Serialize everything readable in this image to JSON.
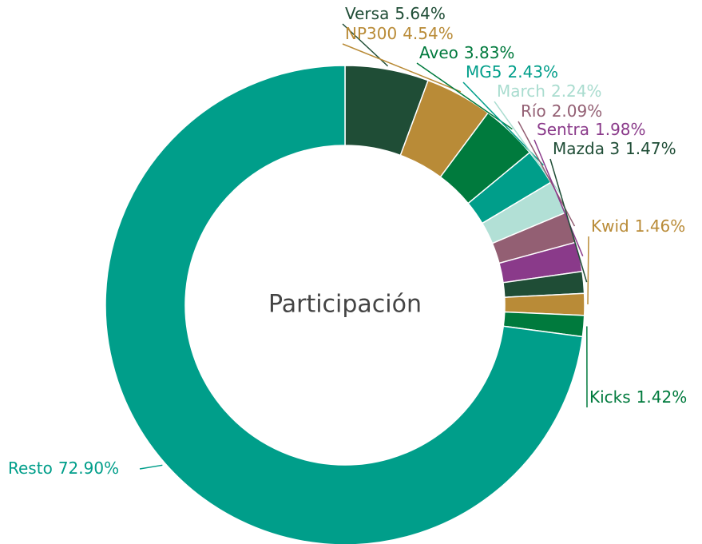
{
  "chart_data": {
    "type": "pie",
    "donut": true,
    "title": "Participación",
    "categories": [
      "Versa",
      "NP300",
      "Aveo",
      "MG5",
      "March",
      "Río",
      "Sentra",
      "Mazda 3",
      "Kwid",
      "Kicks",
      "Resto"
    ],
    "values": [
      5.64,
      4.54,
      3.83,
      2.43,
      2.24,
      2.09,
      1.98,
      1.47,
      1.46,
      1.42,
      72.9
    ],
    "value_labels": [
      "5.64%",
      "4.54%",
      "3.83%",
      "2.43%",
      "2.24%",
      "2.09%",
      "1.98%",
      "1.47%",
      "1.46%",
      "1.42%",
      "72.90%"
    ],
    "colors": [
      "#1f4d36",
      "#b98b37",
      "#007a3d",
      "#009e8a",
      "#b2e0d6",
      "#935f73",
      "#8a3a8a",
      "#1f4d36",
      "#b98b37",
      "#007a3d",
      "#009e8a"
    ]
  }
}
